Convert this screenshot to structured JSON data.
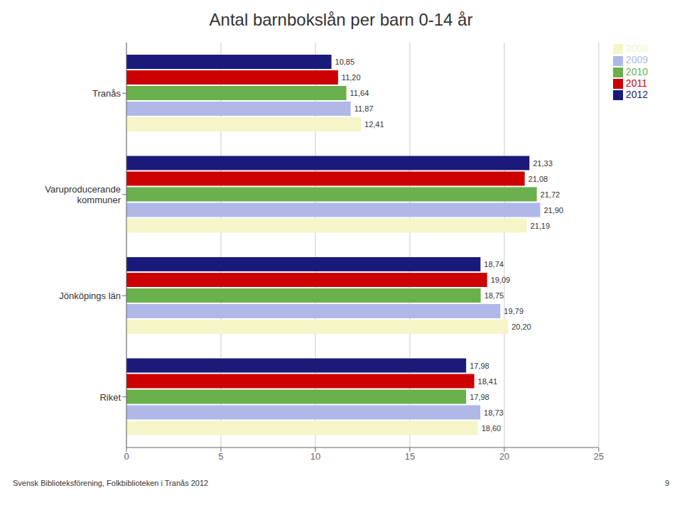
{
  "chart_data": {
    "type": "bar",
    "title": "Antal barnbokslån per barn 0-14 år",
    "orientation": "horizontal",
    "categories": [
      "Tranås",
      "Varuproducerande\nkommuner",
      "Jönköpings län",
      "Riket"
    ],
    "series": [
      {
        "name": "2012",
        "color": "#1a1a7a",
        "values": [
          10.85,
          21.33,
          18.74,
          17.98
        ],
        "value_labels": [
          "10,85",
          "21,33",
          "18,74",
          "17,98"
        ]
      },
      {
        "name": "2011",
        "color": "#cc0000",
        "values": [
          11.2,
          21.08,
          19.09,
          18.41
        ],
        "value_labels": [
          "11,20",
          "21,08",
          "19,09",
          "18,41"
        ]
      },
      {
        "name": "2010",
        "color": "#6ab04c",
        "values": [
          11.64,
          21.72,
          18.75,
          17.98
        ],
        "value_labels": [
          "11,64",
          "21,72",
          "18,75",
          "17,98"
        ]
      },
      {
        "name": "2009",
        "color": "#b0b8e8",
        "values": [
          11.87,
          21.9,
          19.79,
          18.73
        ],
        "value_labels": [
          "11,87",
          "21,90",
          "19,79",
          "18,73"
        ]
      },
      {
        "name": "2008",
        "color": "#f5f5c8",
        "values": [
          12.41,
          21.19,
          20.2,
          18.6
        ],
        "value_labels": [
          "12,41",
          "21,19",
          "20,20",
          "18,60"
        ]
      }
    ],
    "xlim": [
      0,
      25
    ],
    "xticks": [
      0,
      5,
      10,
      15,
      20,
      25
    ],
    "grid": true,
    "legend": "upper right",
    "data_labels": true,
    "annotations": [
      "Svensk Biblioteksförening, Folkbiblioteken i Tranås 2012",
      "9"
    ]
  }
}
